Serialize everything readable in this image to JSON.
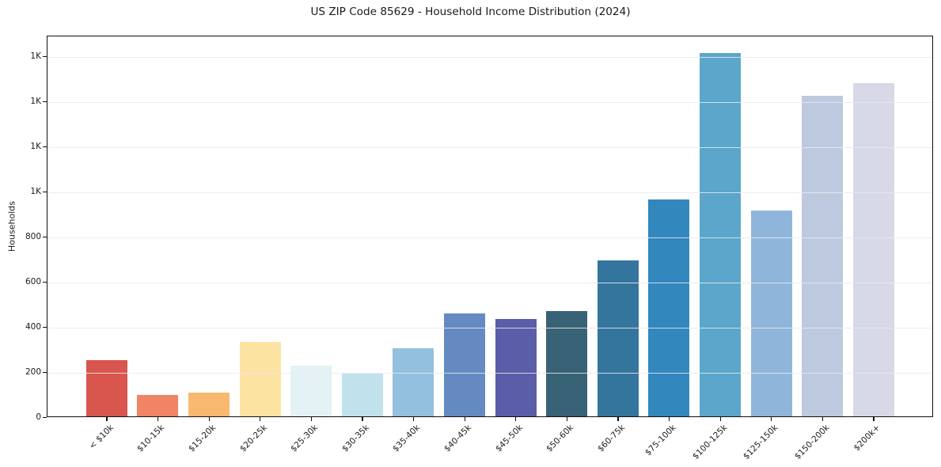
{
  "chart_data": {
    "type": "bar",
    "title": "US ZIP Code 85629 - Household Income Distribution (2024)",
    "xlabel": "",
    "ylabel": "Households",
    "categories": [
      "< $10k",
      "$10-15k",
      "$15-20k",
      "$20-25k",
      "$25-30k",
      "$30-35k",
      "$35-40k",
      "$40-45k",
      "$45-50k",
      "$50-60k",
      "$60-75k",
      "$75-100k",
      "$100-125k",
      "$125-150k",
      "$150-200k",
      "$200k+"
    ],
    "values": [
      250,
      95,
      105,
      330,
      225,
      190,
      300,
      455,
      430,
      465,
      690,
      960,
      1610,
      910,
      1420,
      1475
    ],
    "bar_colors": [
      "#d8564d",
      "#f08465",
      "#f8b96f",
      "#fde3a2",
      "#e4f2f6",
      "#c1e1ed",
      "#93c0de",
      "#648ac1",
      "#5a5da8",
      "#386275",
      "#34759e",
      "#3287bc",
      "#5ba6ca",
      "#90b5da",
      "#bdc9df",
      "#d8d9e7"
    ],
    "ylim": [
      0,
      1690
    ],
    "yticks": [
      {
        "value": 0,
        "label": "0"
      },
      {
        "value": 200,
        "label": "200"
      },
      {
        "value": 400,
        "label": "400"
      },
      {
        "value": 600,
        "label": "600"
      },
      {
        "value": 800,
        "label": "800"
      },
      {
        "value": 1000,
        "label": "1K"
      },
      {
        "value": 1200,
        "label": "1K"
      },
      {
        "value": 1400,
        "label": "1K"
      },
      {
        "value": 1600,
        "label": "1K"
      }
    ],
    "grid": "horizontal",
    "legend": "none"
  },
  "style": {
    "grid_color": "#e9e9ee",
    "spine_color": "#0f0f0f",
    "text_color": "#1a1a1a",
    "background": "#ffffff"
  }
}
